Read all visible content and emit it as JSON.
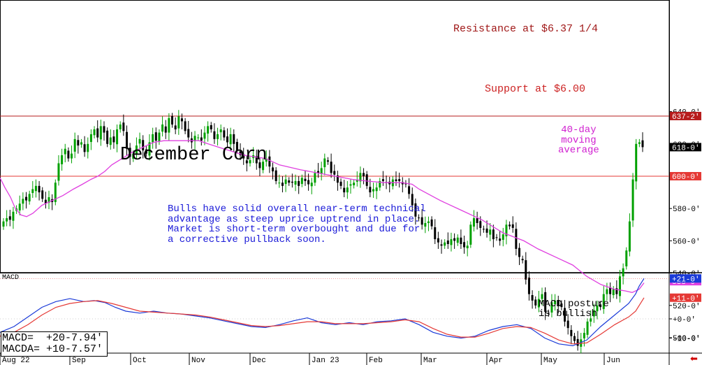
{
  "chart_data": [
    {
      "type": "candlestick",
      "title": "December Corn",
      "annotation": "Bulls have solid overall near-term technical\nadvantage as steep uprice uptrend in place.\nMarket is short-term overbought and due for\na corrective pullback soon.",
      "x_labels": [
        "Aug 22",
        "Sep",
        "Oct",
        "Nov",
        "Dec",
        "Jan 23",
        "Feb",
        "Mar",
        "Apr",
        "May",
        "Jun"
      ],
      "y_ticks": [
        "500-0'",
        "520-0'",
        "540-0'",
        "560-0'",
        "580-0'",
        "600-0'",
        "620-0'",
        "640-0'"
      ],
      "ylim": [
        485,
        645
      ],
      "closes": [
        572,
        574,
        573,
        578,
        580,
        583,
        586,
        585,
        589,
        592,
        594,
        590,
        586,
        583,
        587,
        584,
        596,
        608,
        613,
        617,
        611,
        614,
        623,
        619,
        621,
        615,
        620,
        626,
        629,
        624,
        631,
        627,
        620,
        624,
        621,
        629,
        632,
        628,
        617,
        612,
        614,
        619,
        623,
        616,
        614,
        621,
        626,
        622,
        627,
        632,
        627,
        636,
        632,
        629,
        637,
        634,
        628,
        624,
        621,
        625,
        624,
        622,
        627,
        631,
        629,
        623,
        626,
        629,
        624,
        621,
        626,
        620,
        616,
        613,
        611,
        608,
        610,
        613,
        608,
        605,
        609,
        611,
        606,
        603,
        597,
        596,
        594,
        598,
        596,
        596,
        597,
        594,
        599,
        597,
        595,
        596,
        602,
        602,
        605,
        611,
        609,
        602,
        601,
        596,
        594,
        590,
        593,
        595,
        596,
        598,
        602,
        600,
        594,
        590,
        592,
        593,
        597,
        597,
        596,
        595,
        598,
        597,
        597,
        595,
        595,
        589,
        582,
        575,
        574,
        570,
        571,
        572,
        569,
        561,
        559,
        557,
        559,
        558,
        561,
        560,
        562,
        558,
        556,
        557,
        570,
        574,
        571,
        568,
        567,
        565,
        567,
        561,
        562,
        560,
        564,
        570,
        569,
        568,
        555,
        550,
        548,
        536,
        527,
        523,
        520,
        524,
        527,
        516,
        515,
        522,
        523,
        520,
        519,
        510,
        506,
        501,
        498,
        495,
        499,
        503,
        510,
        512,
        517,
        520,
        519,
        527,
        530,
        527,
        530,
        527,
        538,
        543,
        554,
        572,
        598,
        620,
        621,
        618
      ],
      "ma40_label": "40-day\nmoving\naverage",
      "ma40": [
        [
          0,
          599
        ],
        [
          7,
          593
        ],
        [
          15,
          587
        ],
        [
          22,
          580
        ],
        [
          30,
          576
        ],
        [
          38,
          575
        ],
        [
          47,
          577
        ],
        [
          60,
          582
        ],
        [
          75,
          585
        ],
        [
          90,
          588
        ],
        [
          105,
          592
        ],
        [
          118,
          595
        ],
        [
          130,
          598
        ],
        [
          140,
          600
        ],
        [
          150,
          603
        ],
        [
          160,
          607
        ],
        [
          175,
          611
        ],
        [
          190,
          615
        ],
        [
          205,
          618
        ],
        [
          220,
          621
        ],
        [
          235,
          622
        ],
        [
          255,
          622
        ],
        [
          275,
          622
        ],
        [
          285,
          622
        ],
        [
          298,
          620
        ],
        [
          320,
          617
        ],
        [
          350,
          613
        ],
        [
          380,
          611
        ],
        [
          400,
          607
        ],
        [
          430,
          604
        ],
        [
          455,
          602
        ],
        [
          480,
          600
        ],
        [
          505,
          598
        ],
        [
          525,
          597
        ],
        [
          550,
          596
        ],
        [
          575,
          596
        ],
        [
          590,
          595
        ],
        [
          600,
          592
        ],
        [
          630,
          585
        ],
        [
          660,
          579
        ],
        [
          690,
          573
        ],
        [
          720,
          565
        ],
        [
          750,
          560
        ],
        [
          770,
          555
        ],
        [
          800,
          549
        ],
        [
          820,
          545
        ],
        [
          840,
          538
        ],
        [
          860,
          533
        ],
        [
          880,
          530
        ],
        [
          895,
          529
        ],
        [
          905,
          528
        ],
        [
          915,
          530
        ],
        [
          922,
          534
        ]
      ],
      "reference_lines": [
        {
          "label": "Resistance at $6.37 1/4",
          "value": 637.25,
          "tag": "637-2'",
          "color": "#b71c1c"
        },
        {
          "label": "Support at $6.00",
          "value": 600,
          "tag": "600-0'",
          "color": "#e53935"
        }
      ],
      "tags": [
        {
          "text": "618-0'",
          "value": 618,
          "color": "#000000"
        },
        {
          "text": "535-0'",
          "value": 535,
          "color": "#e040e0"
        }
      ],
      "colors": {
        "up": "#00a000",
        "down": "#000000",
        "ma": "#e040e0"
      }
    },
    {
      "type": "line",
      "title": "MACD",
      "y_ticks": [
        "+0-0'",
        "-10-0'"
      ],
      "ylim": [
        -15,
        23
      ],
      "readout": [
        "MACD=  +20-7.94'",
        "MACDA= +10-7.57'"
      ],
      "note": "MACD posture\nis bullish",
      "tags": [
        {
          "text": "+21-0'",
          "value": 21,
          "color": "#1a3ad8"
        },
        {
          "text": "+11-0'",
          "value": 11,
          "color": "#e53935"
        }
      ],
      "series": [
        {
          "name": "MACD",
          "color": "#1a3ad8",
          "points": [
            [
              0,
              -7
            ],
            [
              20,
              -4
            ],
            [
              40,
              1
            ],
            [
              60,
              6
            ],
            [
              80,
              9
            ],
            [
              100,
              10.5
            ],
            [
              120,
              9
            ],
            [
              135,
              9.5
            ],
            [
              150,
              8.5
            ],
            [
              165,
              6
            ],
            [
              180,
              4
            ],
            [
              200,
              3
            ],
            [
              220,
              4
            ],
            [
              240,
              3
            ],
            [
              260,
              2.5
            ],
            [
              280,
              1.5
            ],
            [
              300,
              0.5
            ],
            [
              320,
              -1
            ],
            [
              340,
              -2.5
            ],
            [
              360,
              -4
            ],
            [
              380,
              -4.5
            ],
            [
              400,
              -3
            ],
            [
              420,
              -1
            ],
            [
              440,
              0.5
            ],
            [
              460,
              -2
            ],
            [
              480,
              -3
            ],
            [
              500,
              -2
            ],
            [
              520,
              -3
            ],
            [
              540,
              -1.5
            ],
            [
              560,
              -1
            ],
            [
              580,
              0
            ],
            [
              600,
              -3
            ],
            [
              620,
              -7
            ],
            [
              640,
              -9
            ],
            [
              660,
              -10
            ],
            [
              680,
              -9
            ],
            [
              700,
              -6
            ],
            [
              720,
              -4
            ],
            [
              740,
              -3
            ],
            [
              760,
              -5
            ],
            [
              780,
              -10
            ],
            [
              800,
              -13
            ],
            [
              820,
              -14
            ],
            [
              840,
              -11
            ],
            [
              860,
              -4
            ],
            [
              880,
              2
            ],
            [
              900,
              8
            ],
            [
              910,
              13
            ],
            [
              915,
              17
            ],
            [
              922,
              21
            ]
          ]
        },
        {
          "name": "MACDA",
          "color": "#e53935",
          "points": [
            [
              0,
              -9
            ],
            [
              20,
              -7
            ],
            [
              40,
              -3
            ],
            [
              60,
              2
            ],
            [
              80,
              6
            ],
            [
              100,
              8
            ],
            [
              120,
              9
            ],
            [
              140,
              9.5
            ],
            [
              160,
              8
            ],
            [
              180,
              6
            ],
            [
              200,
              4
            ],
            [
              220,
              3.5
            ],
            [
              240,
              3
            ],
            [
              260,
              2.5
            ],
            [
              280,
              2
            ],
            [
              300,
              1
            ],
            [
              320,
              -0.5
            ],
            [
              340,
              -2
            ],
            [
              360,
              -3.5
            ],
            [
              380,
              -4
            ],
            [
              400,
              -3.5
            ],
            [
              420,
              -2.5
            ],
            [
              440,
              -1.5
            ],
            [
              460,
              -1.5
            ],
            [
              480,
              -2.5
            ],
            [
              500,
              -2.5
            ],
            [
              520,
              -2.5
            ],
            [
              540,
              -2
            ],
            [
              560,
              -1.5
            ],
            [
              580,
              -0.5
            ],
            [
              600,
              -1.5
            ],
            [
              620,
              -5
            ],
            [
              640,
              -8
            ],
            [
              660,
              -9.5
            ],
            [
              680,
              -9.5
            ],
            [
              700,
              -7.5
            ],
            [
              720,
              -5
            ],
            [
              740,
              -4
            ],
            [
              760,
              -4.5
            ],
            [
              780,
              -7.5
            ],
            [
              800,
              -11
            ],
            [
              820,
              -13
            ],
            [
              840,
              -12.5
            ],
            [
              860,
              -8
            ],
            [
              880,
              -3
            ],
            [
              900,
              1
            ],
            [
              910,
              4
            ],
            [
              922,
              11
            ]
          ]
        }
      ]
    }
  ]
}
